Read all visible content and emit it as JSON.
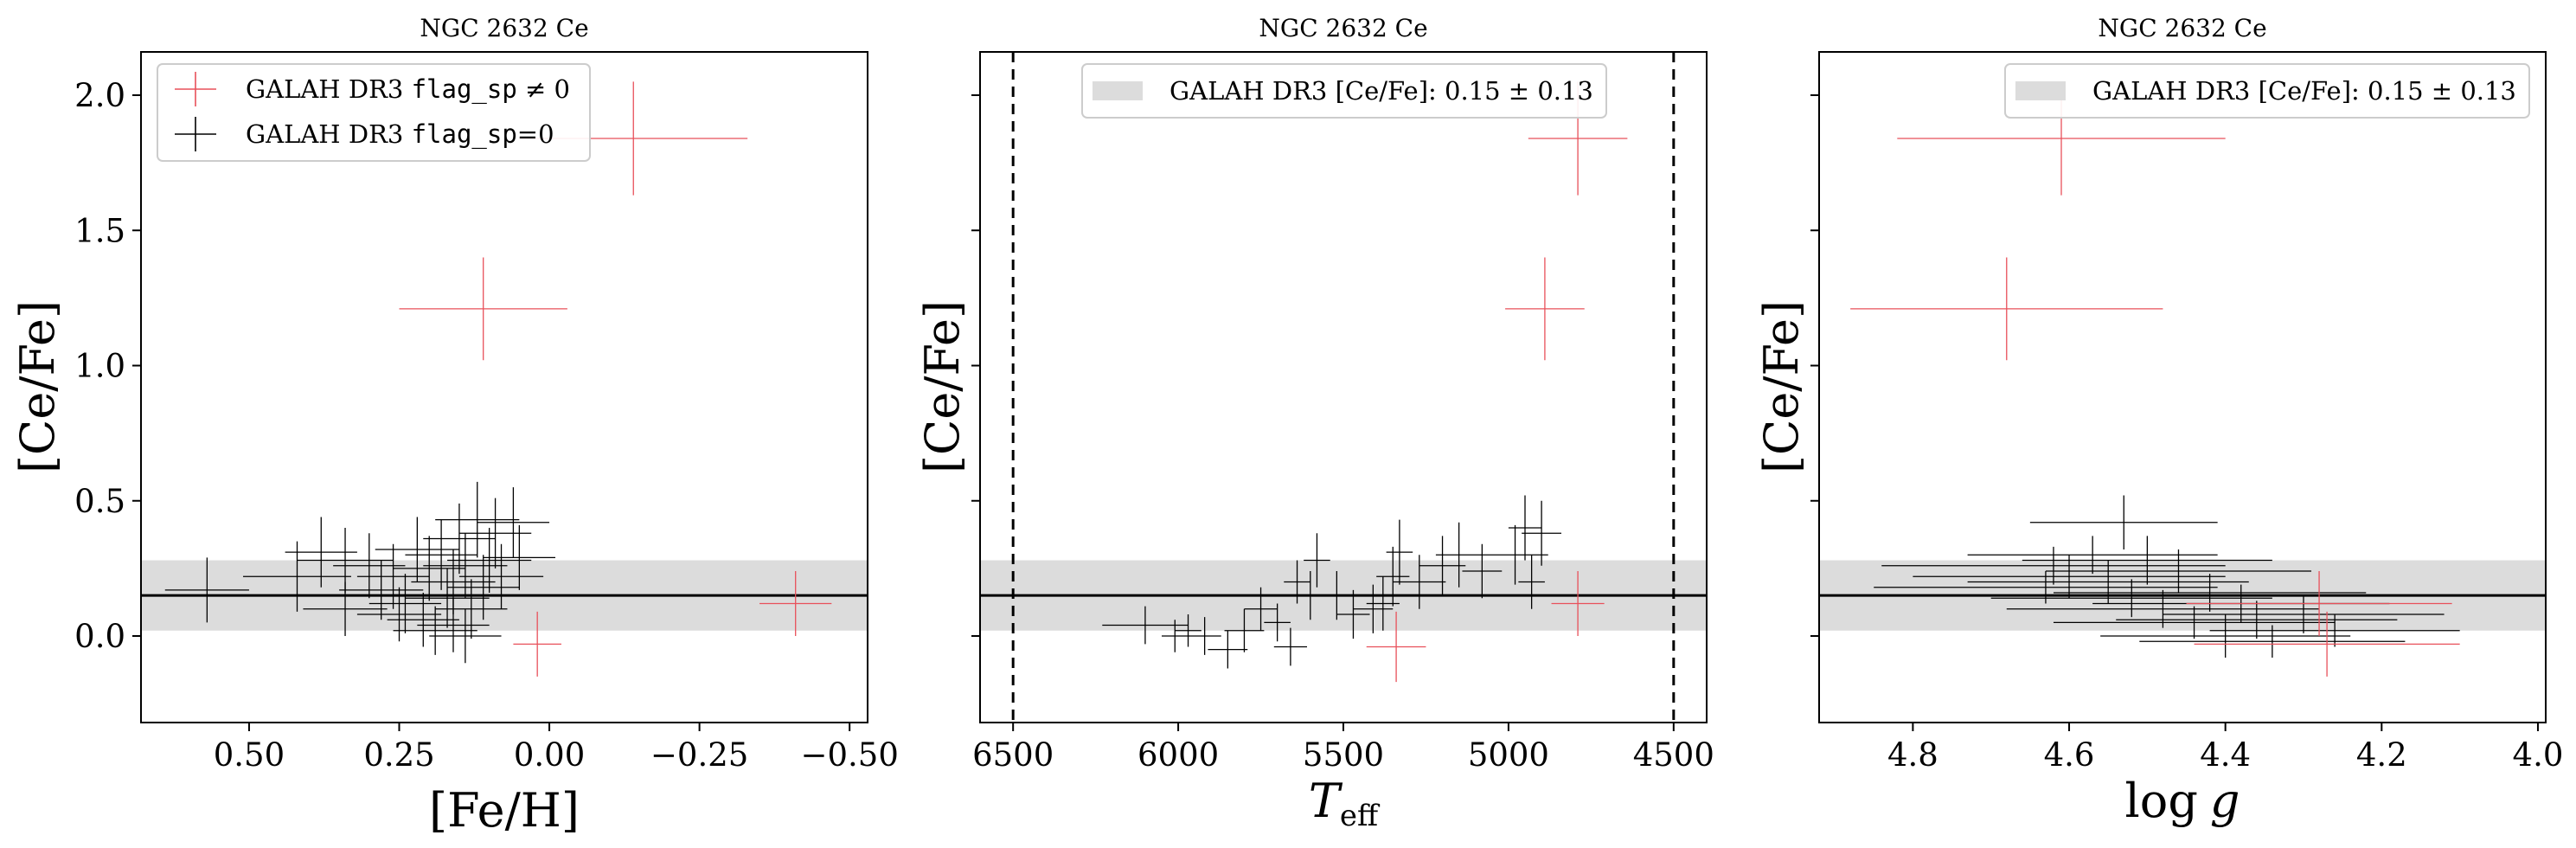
{
  "colors": {
    "flagged": "#e8505a",
    "unflagged": "#000000",
    "band": "#dcdcdc",
    "mean_line": "#000000"
  },
  "shared": {
    "mean": 0.15,
    "sigma": 0.13,
    "ylim": [
      -0.32,
      2.16
    ],
    "yticks": [
      0.0,
      0.5,
      1.0,
      1.5,
      2.0
    ]
  },
  "chart_data": [
    {
      "type": "scatter",
      "title": "NGC 2632 Ce",
      "xlabel": "[Fe/H]",
      "ylabel": "[Ce/Fe]",
      "xlim": [
        0.68,
        -0.53
      ],
      "xticks": [
        0.5,
        0.25,
        0.0,
        -0.25,
        -0.5
      ],
      "xtick_labels": [
        "0.50",
        "0.25",
        "0.00",
        "−0.25",
        "−0.50"
      ],
      "yticks": [
        0.0,
        0.5,
        1.0,
        1.5,
        2.0
      ],
      "ytick_labels": [
        "0.0",
        "0.5",
        "1.0",
        "1.5",
        "2.0"
      ],
      "legend": {
        "placement": "upper-left",
        "entries": [
          {
            "prefix": "GALAH DR3 ",
            "code": "flag_sp",
            "suffix": " ≠ 0",
            "series": "flagged"
          },
          {
            "prefix": "GALAH DR3 ",
            "code": "flag_sp",
            "suffix": "=0",
            "series": "unflagged"
          }
        ]
      },
      "vlines": [],
      "series": [
        {
          "key": "flagged",
          "points": [
            {
              "x": -0.14,
              "y": 1.84,
              "xerr": 0.19,
              "yerr": 0.21
            },
            {
              "x": 0.11,
              "y": 1.21,
              "xerr": 0.14,
              "yerr": 0.19
            },
            {
              "x": 0.02,
              "y": -0.03,
              "xerr": 0.04,
              "yerr": 0.12
            },
            {
              "x": -0.41,
              "y": 0.12,
              "xerr": 0.06,
              "yerr": 0.12
            }
          ]
        },
        {
          "key": "unflagged",
          "points": [
            {
              "x": 0.57,
              "y": 0.17,
              "xerr": 0.07,
              "yerr": 0.12
            },
            {
              "x": 0.42,
              "y": 0.22,
              "xerr": 0.09,
              "yerr": 0.13
            },
            {
              "x": 0.38,
              "y": 0.31,
              "xerr": 0.06,
              "yerr": 0.13
            },
            {
              "x": 0.34,
              "y": 0.28,
              "xerr": 0.08,
              "yerr": 0.12
            },
            {
              "x": 0.34,
              "y": 0.1,
              "xerr": 0.07,
              "yerr": 0.1
            },
            {
              "x": 0.3,
              "y": 0.26,
              "xerr": 0.06,
              "yerr": 0.12
            },
            {
              "x": 0.28,
              "y": 0.17,
              "xerr": 0.07,
              "yerr": 0.11
            },
            {
              "x": 0.26,
              "y": 0.22,
              "xerr": 0.06,
              "yerr": 0.12
            },
            {
              "x": 0.25,
              "y": 0.08,
              "xerr": 0.07,
              "yerr": 0.1
            },
            {
              "x": 0.24,
              "y": 0.12,
              "xerr": 0.06,
              "yerr": 0.11
            },
            {
              "x": 0.22,
              "y": 0.32,
              "xerr": 0.07,
              "yerr": 0.12
            },
            {
              "x": 0.21,
              "y": 0.06,
              "xerr": 0.06,
              "yerr": 0.1
            },
            {
              "x": 0.2,
              "y": 0.25,
              "xerr": 0.06,
              "yerr": 0.12
            },
            {
              "x": 0.19,
              "y": 0.02,
              "xerr": 0.07,
              "yerr": 0.09
            },
            {
              "x": 0.18,
              "y": 0.3,
              "xerr": 0.06,
              "yerr": 0.13
            },
            {
              "x": 0.17,
              "y": 0.14,
              "xerr": 0.07,
              "yerr": 0.11
            },
            {
              "x": 0.16,
              "y": 0.04,
              "xerr": 0.06,
              "yerr": 0.1
            },
            {
              "x": 0.16,
              "y": 0.2,
              "xerr": 0.07,
              "yerr": 0.12
            },
            {
              "x": 0.15,
              "y": 0.36,
              "xerr": 0.06,
              "yerr": 0.13
            },
            {
              "x": 0.14,
              "y": 0.26,
              "xerr": 0.07,
              "yerr": 0.12
            },
            {
              "x": 0.14,
              "y": 0.0,
              "xerr": 0.06,
              "yerr": 0.1
            },
            {
              "x": 0.13,
              "y": 0.1,
              "xerr": 0.06,
              "yerr": 0.11
            },
            {
              "x": 0.12,
              "y": 0.43,
              "xerr": 0.07,
              "yerr": 0.14
            },
            {
              "x": 0.11,
              "y": 0.18,
              "xerr": 0.06,
              "yerr": 0.12
            },
            {
              "x": 0.1,
              "y": 0.28,
              "xerr": 0.07,
              "yerr": 0.12
            },
            {
              "x": 0.09,
              "y": 0.38,
              "xerr": 0.06,
              "yerr": 0.13
            },
            {
              "x": 0.08,
              "y": 0.22,
              "xerr": 0.07,
              "yerr": 0.12
            },
            {
              "x": 0.06,
              "y": 0.42,
              "xerr": 0.06,
              "yerr": 0.13
            },
            {
              "x": 0.05,
              "y": 0.29,
              "xerr": 0.06,
              "yerr": 0.12
            }
          ]
        }
      ]
    },
    {
      "type": "scatter",
      "title": "NGC 2632 Ce",
      "xlabel": "T_eff",
      "xlabel_main": "T",
      "xlabel_sub": "eff",
      "ylabel": "[Ce/Fe]",
      "xlim": [
        6600,
        4400
      ],
      "xticks": [
        6500,
        6000,
        5500,
        5000,
        4500
      ],
      "xtick_labels": [
        "6500",
        "6000",
        "5500",
        "5000",
        "4500"
      ],
      "yticks": [
        0.0,
        0.5,
        1.0,
        1.5,
        2.0
      ],
      "ytick_labels": [
        "",
        "",
        "",
        "",
        ""
      ],
      "legend": {
        "placement": "upper-center",
        "entries": [
          {
            "text": "GALAH DR3 [Ce/Fe]: 0.15 ± 0.13",
            "series": "band"
          }
        ]
      },
      "vlines": [
        6500,
        4500
      ],
      "series": [
        {
          "key": "flagged",
          "points": [
            {
              "x": 4790,
              "y": 1.84,
              "xerr": 150,
              "yerr": 0.21
            },
            {
              "x": 4890,
              "y": 1.21,
              "xerr": 120,
              "yerr": 0.19
            },
            {
              "x": 5340,
              "y": -0.04,
              "xerr": 90,
              "yerr": 0.13
            },
            {
              "x": 4790,
              "y": 0.12,
              "xerr": 80,
              "yerr": 0.12
            }
          ]
        },
        {
          "key": "unflagged",
          "points": [
            {
              "x": 6100,
              "y": 0.04,
              "xerr": 130,
              "yerr": 0.07
            },
            {
              "x": 6010,
              "y": 0.0,
              "xerr": 40,
              "yerr": 0.06
            },
            {
              "x": 5970,
              "y": 0.02,
              "xerr": 40,
              "yerr": 0.06
            },
            {
              "x": 5920,
              "y": 0.0,
              "xerr": 50,
              "yerr": 0.07
            },
            {
              "x": 5850,
              "y": -0.05,
              "xerr": 60,
              "yerr": 0.07
            },
            {
              "x": 5800,
              "y": 0.02,
              "xerr": 60,
              "yerr": 0.08
            },
            {
              "x": 5750,
              "y": 0.1,
              "xerr": 50,
              "yerr": 0.08
            },
            {
              "x": 5700,
              "y": 0.05,
              "xerr": 40,
              "yerr": 0.07
            },
            {
              "x": 5660,
              "y": -0.04,
              "xerr": 50,
              "yerr": 0.07
            },
            {
              "x": 5640,
              "y": 0.2,
              "xerr": 40,
              "yerr": 0.08
            },
            {
              "x": 5600,
              "y": 0.15,
              "xerr": 60,
              "yerr": 0.09
            },
            {
              "x": 5580,
              "y": 0.28,
              "xerr": 40,
              "yerr": 0.1
            },
            {
              "x": 5520,
              "y": 0.15,
              "xerr": 60,
              "yerr": 0.09
            },
            {
              "x": 5470,
              "y": 0.08,
              "xerr": 50,
              "yerr": 0.09
            },
            {
              "x": 5410,
              "y": 0.1,
              "xerr": 60,
              "yerr": 0.09
            },
            {
              "x": 5380,
              "y": 0.12,
              "xerr": 50,
              "yerr": 0.1
            },
            {
              "x": 5350,
              "y": 0.22,
              "xerr": 50,
              "yerr": 0.11
            },
            {
              "x": 5330,
              "y": 0.31,
              "xerr": 40,
              "yerr": 0.12
            },
            {
              "x": 5270,
              "y": 0.2,
              "xerr": 80,
              "yerr": 0.1
            },
            {
              "x": 5200,
              "y": 0.26,
              "xerr": 70,
              "yerr": 0.11
            },
            {
              "x": 5150,
              "y": 0.3,
              "xerr": 70,
              "yerr": 0.12
            },
            {
              "x": 5080,
              "y": 0.24,
              "xerr": 60,
              "yerr": 0.1
            },
            {
              "x": 4980,
              "y": 0.3,
              "xerr": 100,
              "yerr": 0.11
            },
            {
              "x": 4950,
              "y": 0.4,
              "xerr": 50,
              "yerr": 0.12
            },
            {
              "x": 4930,
              "y": 0.2,
              "xerr": 40,
              "yerr": 0.1
            },
            {
              "x": 4900,
              "y": 0.38,
              "xerr": 60,
              "yerr": 0.12
            }
          ]
        }
      ]
    },
    {
      "type": "scatter",
      "title": "NGC 2632 Ce",
      "xlabel": "log g",
      "xlabel_main": "log",
      "xlabel_var": "g",
      "ylabel": "[Ce/Fe]",
      "xlim": [
        4.92,
        3.99
      ],
      "xticks": [
        4.8,
        4.6,
        4.4,
        4.2,
        4.0
      ],
      "xtick_labels": [
        "4.8",
        "4.6",
        "4.4",
        "4.2",
        "4.0"
      ],
      "yticks": [
        0.0,
        0.5,
        1.0,
        1.5,
        2.0
      ],
      "ytick_labels": [
        "",
        "",
        "",
        "",
        ""
      ],
      "legend": {
        "placement": "upper-right",
        "entries": [
          {
            "text": "GALAH DR3 [Ce/Fe]: 0.15 ± 0.13",
            "series": "band"
          }
        ]
      },
      "vlines": [],
      "series": [
        {
          "key": "flagged",
          "points": [
            {
              "x": 4.61,
              "y": 1.84,
              "xerr": 0.21,
              "yerr": 0.21
            },
            {
              "x": 4.68,
              "y": 1.21,
              "xerr": 0.2,
              "yerr": 0.19
            },
            {
              "x": 4.28,
              "y": 0.12,
              "xerr": 0.17,
              "yerr": 0.12
            },
            {
              "x": 4.27,
              "y": -0.03,
              "xerr": 0.17,
              "yerr": 0.12
            }
          ]
        },
        {
          "key": "unflagged",
          "points": [
            {
              "x": 4.62,
              "y": 0.26,
              "xerr": 0.22,
              "yerr": 0.07
            },
            {
              "x": 4.6,
              "y": 0.22,
              "xerr": 0.2,
              "yerr": 0.08
            },
            {
              "x": 4.63,
              "y": 0.18,
              "xerr": 0.22,
              "yerr": 0.06
            },
            {
              "x": 4.57,
              "y": 0.3,
              "xerr": 0.16,
              "yerr": 0.07
            },
            {
              "x": 4.55,
              "y": 0.2,
              "xerr": 0.18,
              "yerr": 0.08
            },
            {
              "x": 4.53,
              "y": 0.42,
              "xerr": 0.12,
              "yerr": 0.1
            },
            {
              "x": 4.52,
              "y": 0.14,
              "xerr": 0.18,
              "yerr": 0.07
            },
            {
              "x": 4.5,
              "y": 0.28,
              "xerr": 0.16,
              "yerr": 0.09
            },
            {
              "x": 4.48,
              "y": 0.1,
              "xerr": 0.2,
              "yerr": 0.07
            },
            {
              "x": 4.46,
              "y": 0.24,
              "xerr": 0.17,
              "yerr": 0.08
            },
            {
              "x": 4.44,
              "y": 0.05,
              "xerr": 0.18,
              "yerr": 0.06
            },
            {
              "x": 4.42,
              "y": 0.16,
              "xerr": 0.2,
              "yerr": 0.07
            },
            {
              "x": 4.4,
              "y": 0.0,
              "xerr": 0.16,
              "yerr": 0.08
            },
            {
              "x": 4.38,
              "y": 0.12,
              "xerr": 0.19,
              "yerr": 0.07
            },
            {
              "x": 4.36,
              "y": 0.06,
              "xerr": 0.18,
              "yerr": 0.07
            },
            {
              "x": 4.34,
              "y": -0.02,
              "xerr": 0.17,
              "yerr": 0.06
            },
            {
              "x": 4.3,
              "y": 0.08,
              "xerr": 0.18,
              "yerr": 0.07
            },
            {
              "x": 4.26,
              "y": 0.02,
              "xerr": 0.16,
              "yerr": 0.06
            }
          ]
        }
      ]
    }
  ]
}
